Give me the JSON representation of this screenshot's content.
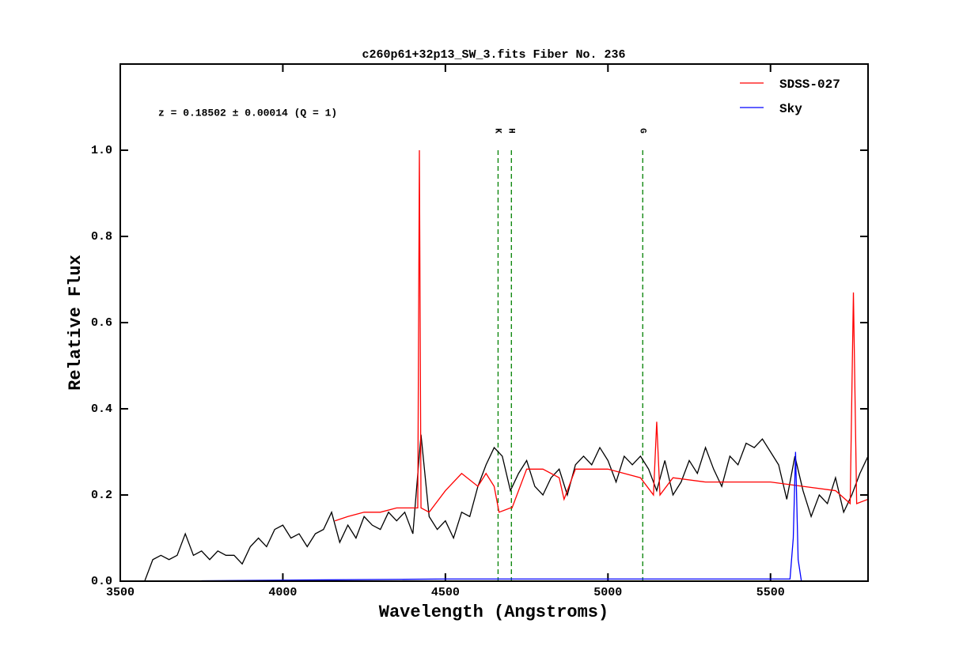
{
  "chart_data": {
    "type": "line",
    "title": "c260p61+32p13_SW_3.fits Fiber No. 236",
    "xlabel": "Wavelength (Angstroms)",
    "ylabel": "Relative Flux",
    "annotation": "z = 0.18502 ± 0.00014 (Q = 1)",
    "annotation_color": "#ff0000",
    "xlim": [
      3500,
      5800
    ],
    "ylim": [
      0,
      1.2
    ],
    "xticks": [
      3500,
      4000,
      4500,
      5000,
      5500
    ],
    "yticks": [
      {
        "value": 0,
        "label": "0.0"
      },
      0.2,
      0.4,
      0.6,
      0.8,
      {
        "value": 1,
        "label": "1.0"
      }
    ],
    "legend": "upper right",
    "lines_color": "#008000",
    "lines": [
      {
        "label": "K",
        "x": 4662
      },
      {
        "label": "H",
        "x": 4703
      },
      {
        "label": "G",
        "x": 5107
      }
    ],
    "series": [
      {
        "color": "#000000",
        "x": [
          3575,
          3600,
          3625,
          3650,
          3675,
          3700,
          3725,
          3750,
          3775,
          3800,
          3825,
          3850,
          3875,
          3900,
          3925,
          3950,
          3975,
          4000,
          4025,
          4050,
          4075,
          4100,
          4125,
          4150,
          4175,
          4200,
          4225,
          4250,
          4275,
          4300,
          4325,
          4350,
          4375,
          4400,
          4425,
          4450,
          4475,
          4500,
          4525,
          4550,
          4575,
          4600,
          4625,
          4650,
          4675,
          4700,
          4725,
          4750,
          4775,
          4800,
          4825,
          4850,
          4875,
          4900,
          4925,
          4950,
          4975,
          5000,
          5025,
          5050,
          5075,
          5100,
          5125,
          5150,
          5175,
          5200,
          5225,
          5250,
          5275,
          5300,
          5325,
          5350,
          5375,
          5400,
          5425,
          5450,
          5475,
          5500,
          5525,
          5550,
          5575,
          5600,
          5625,
          5650,
          5675,
          5700,
          5725,
          5750,
          5775,
          5800
        ],
        "values": [
          0.0,
          0.05,
          0.06,
          0.05,
          0.06,
          0.11,
          0.06,
          0.07,
          0.05,
          0.07,
          0.06,
          0.06,
          0.04,
          0.08,
          0.1,
          0.08,
          0.12,
          0.13,
          0.1,
          0.11,
          0.08,
          0.11,
          0.12,
          0.16,
          0.09,
          0.13,
          0.1,
          0.15,
          0.13,
          0.12,
          0.16,
          0.14,
          0.16,
          0.11,
          0.34,
          0.15,
          0.12,
          0.14,
          0.1,
          0.16,
          0.15,
          0.22,
          0.27,
          0.31,
          0.29,
          0.21,
          0.25,
          0.28,
          0.22,
          0.2,
          0.24,
          0.26,
          0.2,
          0.27,
          0.29,
          0.27,
          0.31,
          0.28,
          0.23,
          0.29,
          0.27,
          0.29,
          0.26,
          0.21,
          0.28,
          0.2,
          0.23,
          0.28,
          0.25,
          0.31,
          0.26,
          0.22,
          0.29,
          0.27,
          0.32,
          0.31,
          0.33,
          0.3,
          0.27,
          0.19,
          0.29,
          0.21,
          0.15,
          0.2,
          0.18,
          0.24,
          0.16,
          0.2,
          0.25,
          0.29
        ]
      },
      {
        "name": "SDSS-027",
        "color": "#ff0000",
        "x": [
          4160,
          4200,
          4250,
          4300,
          4350,
          4400,
          4415,
          4420,
          4425,
          4450,
          4500,
          4550,
          4600,
          4625,
          4650,
          4665,
          4700,
          4705,
          4750,
          4800,
          4850,
          4865,
          4900,
          4950,
          5000,
          5050,
          5100,
          5140,
          5150,
          5160,
          5200,
          5300,
          5400,
          5500,
          5600,
          5700,
          5745,
          5755,
          5765,
          5800
        ],
        "values": [
          0.14,
          0.15,
          0.16,
          0.16,
          0.17,
          0.17,
          0.17,
          1.0,
          0.17,
          0.16,
          0.21,
          0.25,
          0.22,
          0.25,
          0.22,
          0.16,
          0.17,
          0.17,
          0.26,
          0.26,
          0.24,
          0.19,
          0.26,
          0.26,
          0.26,
          0.25,
          0.24,
          0.2,
          0.37,
          0.2,
          0.24,
          0.23,
          0.23,
          0.23,
          0.22,
          0.21,
          0.18,
          0.67,
          0.18,
          0.19
        ]
      },
      {
        "name": "Sky",
        "color": "#0000ff",
        "x": [
          3580,
          4500,
          5560,
          5570,
          5577,
          5585,
          5595,
          5800
        ],
        "values": [
          0,
          0.005,
          0.005,
          0.1,
          0.3,
          0.05,
          0,
          0
        ]
      }
    ]
  }
}
